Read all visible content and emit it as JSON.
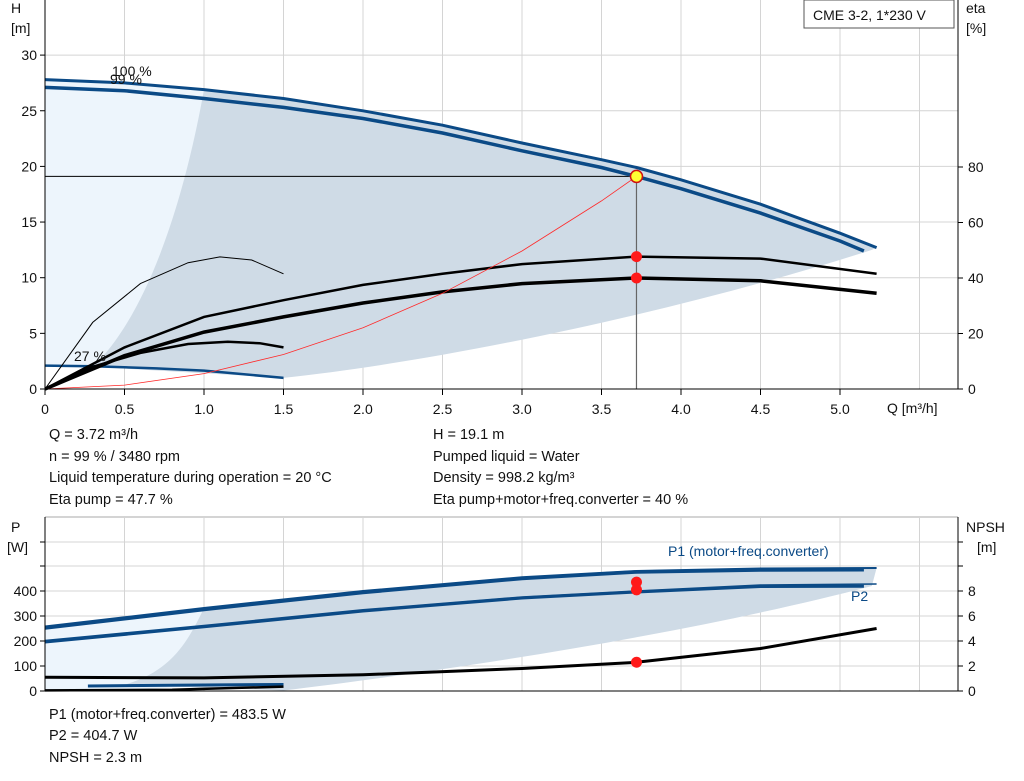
{
  "title_box": "CME 3-2, 1*230 V",
  "chart_data": [
    {
      "type": "line",
      "name_panel": "head-efficiency",
      "ylabel_left": [
        "H",
        "[m]"
      ],
      "ylabel_right": [
        "eta",
        "[%]"
      ],
      "xlabel": "Q [m³/h]",
      "xlim": [
        0,
        5.6
      ],
      "ylim_left": [
        0,
        35
      ],
      "ylim_right": [
        0,
        126
      ],
      "xticks": [
        "0",
        "0.5",
        "1.0",
        "1.5",
        "2.0",
        "2.5",
        "3.0",
        "3.5",
        "4.0",
        "4.5",
        "5.0"
      ],
      "yticks_left": [
        "0",
        "5",
        "10",
        "15",
        "20",
        "25",
        "30"
      ],
      "yticks_right": [
        "0",
        "20",
        "40",
        "60",
        "80"
      ],
      "grid": true,
      "speed_labels": [
        "100 %",
        "99 %",
        "27 %"
      ],
      "series": [
        {
          "id": "h100",
          "axis": "left",
          "color": "#0b4a86",
          "points": [
            [
              0,
              27.8
            ],
            [
              0.5,
              27.5
            ],
            [
              1,
              26.9
            ],
            [
              1.5,
              26.1
            ],
            [
              2,
              25.0
            ],
            [
              2.5,
              23.7
            ],
            [
              3,
              22.1
            ],
            [
              3.5,
              20.6
            ],
            [
              3.72,
              19.9
            ],
            [
              4,
              18.8
            ],
            [
              4.5,
              16.6
            ],
            [
              5,
              14.0
            ],
            [
              5.23,
              12.7
            ]
          ]
        },
        {
          "id": "h99",
          "axis": "left",
          "color": "#0b4a86",
          "points": [
            [
              0,
              27.1
            ],
            [
              0.5,
              26.8
            ],
            [
              1,
              26.1
            ],
            [
              1.5,
              25.3
            ],
            [
              2,
              24.3
            ],
            [
              2.5,
              23.0
            ],
            [
              3,
              21.4
            ],
            [
              3.5,
              19.9
            ],
            [
              3.72,
              19.1
            ],
            [
              4,
              18.0
            ],
            [
              4.5,
              15.8
            ],
            [
              5,
              13.3
            ],
            [
              5.15,
              12.4
            ]
          ]
        },
        {
          "id": "h27",
          "axis": "left",
          "color": "#0b4a86",
          "points": [
            [
              0,
              2.1
            ],
            [
              0.3,
              2.05
            ],
            [
              0.7,
              1.85
            ],
            [
              1,
              1.65
            ],
            [
              1.5,
              1.0
            ]
          ]
        },
        {
          "id": "eta-pump",
          "axis": "right",
          "color": "#000000",
          "points": [
            [
              0,
              0
            ],
            [
              0.5,
              15
            ],
            [
              1,
              26
            ],
            [
              1.5,
              32
            ],
            [
              2,
              37.5
            ],
            [
              2.5,
              41.5
            ],
            [
              3,
              45
            ],
            [
              3.72,
              47.7
            ],
            [
              4.5,
              47
            ],
            [
              5.23,
              41.5
            ]
          ]
        },
        {
          "id": "eta-total",
          "axis": "right",
          "color": "#000000",
          "points": [
            [
              0,
              0
            ],
            [
              0.5,
              12
            ],
            [
              1,
              20.5
            ],
            [
              1.5,
              26
            ],
            [
              2,
              31
            ],
            [
              2.5,
              35
            ],
            [
              3,
              38
            ],
            [
              3.72,
              40
            ],
            [
              4.5,
              39
            ],
            [
              5.23,
              34.5
            ]
          ]
        },
        {
          "id": "eta-pump-min",
          "axis": "right",
          "color": "#000000",
          "points": [
            [
              0,
              0
            ],
            [
              0.3,
              24
            ],
            [
              0.6,
              38
            ],
            [
              0.9,
              45.5
            ],
            [
              1.1,
              47.6
            ],
            [
              1.3,
              46.5
            ],
            [
              1.5,
              41.5
            ]
          ]
        },
        {
          "id": "eta-total-min",
          "axis": "right",
          "color": "#000000",
          "points": [
            [
              0,
              0
            ],
            [
              0.3,
              8
            ],
            [
              0.6,
              13
            ],
            [
              0.9,
              16.2
            ],
            [
              1.15,
              17
            ],
            [
              1.35,
              16.5
            ],
            [
              1.5,
              15
            ]
          ]
        },
        {
          "id": "system-curve",
          "axis": "left",
          "color": "#ff2a2a",
          "points": [
            [
              0,
              0
            ],
            [
              0.5,
              0.35
            ],
            [
              1,
              1.38
            ],
            [
              1.5,
              3.1
            ],
            [
              2,
              5.5
            ],
            [
              2.5,
              8.6
            ],
            [
              3,
              12.4
            ],
            [
              3.5,
              16.9
            ],
            [
              3.72,
              19.1
            ]
          ]
        }
      ],
      "duty_point": {
        "q": 3.72,
        "h": 19.1,
        "eta_pump": 47.7,
        "eta_total": 40
      }
    },
    {
      "type": "line",
      "name_panel": "power-npsh",
      "ylabel_left": [
        "P",
        "[W]"
      ],
      "ylabel_right": [
        "NPSH",
        "[m]"
      ],
      "xlim": [
        0,
        5.6
      ],
      "ylim_left": [
        0,
        700
      ],
      "ylim_right": [
        0,
        14
      ],
      "yticks_left": [
        "0",
        "100",
        "200",
        "300",
        "400"
      ],
      "yticks_right": [
        "0",
        "2",
        "4",
        "6",
        "8"
      ],
      "grid": true,
      "series_labels": [
        "P1 (motor+freq.converter)",
        "P2"
      ],
      "series": [
        {
          "id": "p1-100",
          "axis": "left",
          "color": "#0b4a86",
          "points": [
            [
              0,
              258
            ],
            [
              1,
              332
            ],
            [
              2,
              400
            ],
            [
              3,
              455
            ],
            [
              3.72,
              480
            ],
            [
              4.5,
              490
            ],
            [
              5.23,
              492
            ]
          ]
        },
        {
          "id": "p1-99",
          "axis": "left",
          "color": "#0b4a86",
          "points": [
            [
              0,
              252
            ],
            [
              1,
              326
            ],
            [
              2,
              394
            ],
            [
              3,
              450
            ],
            [
              3.72,
              476
            ],
            [
              4.5,
              484
            ],
            [
              5.15,
              485
            ]
          ]
        },
        {
          "id": "p2-100",
          "axis": "left",
          "color": "#0b4a86",
          "points": [
            [
              0,
              202
            ],
            [
              1,
              262
            ],
            [
              2,
              325
            ],
            [
              3,
              376
            ],
            [
              3.72,
              400
            ],
            [
              4.5,
              424
            ],
            [
              5.23,
              428
            ]
          ]
        },
        {
          "id": "p2-99",
          "axis": "left",
          "color": "#0b4a86",
          "points": [
            [
              0,
              196
            ],
            [
              1,
              257
            ],
            [
              2,
              320
            ],
            [
              3,
              372
            ],
            [
              3.72,
              396
            ],
            [
              4.5,
              418
            ],
            [
              5.15,
              419
            ]
          ]
        },
        {
          "id": "p-min",
          "axis": "left",
          "color": "#0b4a86",
          "points": [
            [
              0.27,
              20
            ],
            [
              1,
              24
            ],
            [
              1.5,
              26
            ]
          ]
        },
        {
          "id": "npsh",
          "axis": "right",
          "color": "#000000",
          "points": [
            [
              0,
              1.1
            ],
            [
              1,
              1.05
            ],
            [
              2,
              1.3
            ],
            [
              3,
              1.8
            ],
            [
              3.72,
              2.3
            ],
            [
              4.5,
              3.4
            ],
            [
              5.23,
              5.0
            ]
          ]
        },
        {
          "id": "npsh-min",
          "axis": "right",
          "color": "#000000",
          "points": [
            [
              0,
              0.05
            ],
            [
              0.8,
              0.1
            ],
            [
              1.5,
              0.35
            ]
          ]
        }
      ],
      "duty_point": {
        "q": 3.72,
        "p1": 483.5,
        "p2": 404.7,
        "npsh": 2.3
      }
    }
  ],
  "readout_top": {
    "q": "Q = 3.72 m³/h",
    "n": "n = 99 % / 3480 rpm",
    "temp": "Liquid temperature during operation = 20 °C",
    "eta_pump": "Eta pump = 47.7 %",
    "h": "H = 19.1 m",
    "liquid": "Pumped liquid = Water",
    "density": "Density = 998.2 kg/m³",
    "eta_total": "Eta pump+motor+freq.converter = 40 %"
  },
  "readout_bottom": {
    "p1": "P1 (motor+freq.converter) = 483.5 W",
    "p2": "P2 = 404.7 W",
    "npsh": "NPSH = 2.3 m"
  }
}
